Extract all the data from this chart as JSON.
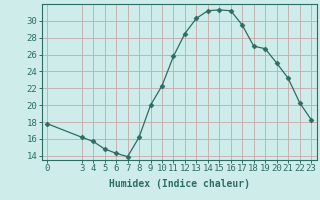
{
  "x": [
    0,
    3,
    4,
    5,
    6,
    7,
    8,
    9,
    10,
    11,
    12,
    13,
    14,
    15,
    16,
    17,
    18,
    19,
    20,
    21,
    22,
    23
  ],
  "y": [
    17.8,
    16.2,
    15.7,
    14.8,
    14.3,
    13.9,
    16.2,
    20.0,
    22.3,
    25.8,
    28.5,
    30.3,
    31.2,
    31.3,
    31.2,
    29.5,
    27.0,
    26.7,
    25.0,
    23.2,
    20.3,
    18.3
  ],
  "line_color": "#2e6d63",
  "marker": "D",
  "marker_size": 2.5,
  "bg_color": "#ceecea",
  "grid_color": "#c8a8a8",
  "axis_color": "#2e6d63",
  "xlabel": "Humidex (Indice chaleur)",
  "xlim": [
    -0.5,
    23.5
  ],
  "ylim": [
    13.5,
    32
  ],
  "yticks": [
    14,
    16,
    18,
    20,
    22,
    24,
    26,
    28,
    30
  ],
  "xticks": [
    0,
    3,
    4,
    5,
    6,
    7,
    8,
    9,
    10,
    11,
    12,
    13,
    14,
    15,
    16,
    17,
    18,
    19,
    20,
    21,
    22,
    23
  ],
  "xlabel_fontsize": 7,
  "tick_fontsize": 6.5
}
